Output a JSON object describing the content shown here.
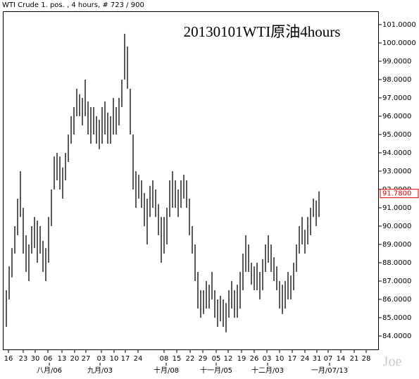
{
  "chart_data": {
    "type": "ohlc",
    "header": "WTI Crude 1. pos. , 4 hours, # 723 / 900",
    "title": "20130101WTI原油4hours",
    "watermark": "Joe",
    "color": "#000000",
    "x": [
      1,
      2,
      3,
      4,
      5,
      6,
      7,
      8,
      9,
      10,
      11,
      12,
      13,
      14,
      15,
      16,
      17,
      18,
      19,
      20,
      21,
      22,
      23,
      24,
      25,
      26,
      27,
      28,
      29,
      30,
      31,
      32,
      33,
      34,
      35,
      36,
      37,
      38,
      39,
      40,
      41,
      42,
      43,
      44,
      45,
      46,
      47,
      48,
      49,
      50,
      51,
      52,
      53,
      54,
      55,
      56,
      57,
      58,
      59,
      60,
      61,
      62,
      63,
      64,
      65,
      66,
      67,
      68,
      69,
      70,
      71,
      72,
      73,
      74,
      75,
      76,
      77,
      78,
      79,
      80,
      81,
      82,
      83,
      84,
      85,
      86,
      87,
      88,
      89,
      90,
      91,
      92,
      93,
      94,
      95,
      96,
      97,
      98,
      99,
      100,
      101,
      102,
      103,
      104,
      105,
      106,
      107,
      108,
      109,
      110,
      111,
      112
    ],
    "low": [
      84.5,
      86.0,
      87.2,
      88.5,
      89.5,
      90.5,
      88.5,
      87.5,
      87.0,
      88.5,
      88.8,
      88.0,
      88.5,
      87.5,
      87.0,
      88.0,
      90.0,
      92.0,
      92.5,
      92.0,
      91.5,
      92.5,
      93.5,
      94.5,
      95.0,
      96.0,
      96.0,
      95.5,
      96.0,
      95.0,
      94.5,
      95.0,
      94.5,
      94.2,
      94.5,
      95.0,
      94.5,
      94.5,
      95.0,
      95.0,
      95.5,
      96.5,
      98.0,
      97.5,
      95.0,
      92.0,
      91.0,
      91.5,
      91.0,
      90.0,
      89.0,
      90.5,
      91.0,
      90.5,
      89.5,
      88.0,
      88.5,
      89.0,
      90.5,
      91.0,
      91.0,
      90.5,
      91.0,
      91.5,
      91.0,
      89.5,
      88.5,
      87.0,
      85.5,
      85.0,
      85.2,
      85.5,
      85.5,
      86.0,
      85.0,
      84.5,
      84.8,
      84.5,
      84.2,
      85.0,
      85.5,
      85.0,
      85.0,
      85.5,
      86.5,
      87.5,
      87.5,
      86.8,
      86.5,
      86.5,
      86.0,
      86.5,
      87.5,
      88.0,
      87.5,
      87.0,
      86.5,
      85.5,
      85.2,
      85.5,
      86.0,
      86.0,
      86.5,
      87.5,
      88.5,
      89.0,
      88.5,
      89.0,
      89.5,
      90.5,
      90.0,
      90.5
    ],
    "high": [
      86.5,
      87.8,
      88.8,
      90.0,
      91.5,
      93.0,
      91.0,
      89.5,
      89.0,
      90.0,
      90.5,
      90.3,
      90.0,
      89.2,
      88.8,
      90.5,
      92.0,
      93.8,
      94.0,
      93.8,
      93.2,
      94.0,
      95.0,
      96.0,
      96.5,
      97.5,
      97.2,
      97.0,
      98.0,
      96.8,
      96.5,
      96.5,
      96.0,
      95.8,
      96.5,
      96.8,
      96.2,
      96.0,
      97.0,
      96.5,
      97.0,
      98.0,
      100.5,
      99.8,
      97.5,
      95.0,
      93.0,
      92.8,
      92.5,
      91.8,
      91.5,
      92.2,
      92.5,
      92.0,
      91.2,
      90.5,
      90.5,
      91.0,
      92.5,
      93.0,
      92.5,
      92.0,
      92.5,
      92.8,
      92.5,
      91.5,
      90.0,
      89.0,
      87.5,
      86.5,
      86.5,
      87.0,
      86.8,
      87.5,
      86.5,
      86.0,
      86.2,
      86.0,
      85.8,
      86.5,
      87.0,
      86.5,
      86.8,
      87.5,
      88.5,
      89.5,
      89.0,
      88.0,
      87.8,
      88.0,
      87.5,
      88.2,
      89.0,
      89.5,
      89.0,
      88.3,
      87.8,
      87.0,
      86.8,
      87.0,
      87.5,
      87.3,
      88.0,
      89.0,
      90.0,
      90.5,
      89.8,
      90.5,
      91.0,
      91.5,
      91.4,
      91.9
    ],
    "last_price": {
      "value": 91.78,
      "label": "91.7800"
    },
    "xlim": [
      0,
      133.25
    ],
    "ylim": [
      83.23,
      101.69
    ],
    "yticks": [
      {
        "value": 84,
        "label": "84.0000"
      },
      {
        "value": 85,
        "label": "85.0000"
      },
      {
        "value": 86,
        "label": "86.0000"
      },
      {
        "value": 87,
        "label": "87.0000"
      },
      {
        "value": 88,
        "label": "88.0000"
      },
      {
        "value": 89,
        "label": "89.0000"
      },
      {
        "value": 90,
        "label": "90.0000"
      },
      {
        "value": 91,
        "label": "91.0000"
      },
      {
        "value": 92,
        "label": "92.0000"
      },
      {
        "value": 93,
        "label": "93.0000"
      },
      {
        "value": 94,
        "label": "94.0000"
      },
      {
        "value": 95,
        "label": "95.0000"
      },
      {
        "value": 96,
        "label": "96.0000"
      },
      {
        "value": 97,
        "label": "97.0000"
      },
      {
        "value": 98,
        "label": "98.0000"
      },
      {
        "value": 99,
        "label": "99.0000"
      },
      {
        "value": 100,
        "label": "100.0000"
      },
      {
        "value": 101,
        "label": "101.0000"
      }
    ],
    "xticks": [
      {
        "value": 1.75,
        "label": "16"
      },
      {
        "value": 7,
        "label": "23"
      },
      {
        "value": 11.25,
        "label": "30"
      },
      {
        "value": 15.75,
        "label": "06"
      },
      {
        "value": 20.75,
        "label": "13"
      },
      {
        "value": 25.25,
        "label": "20"
      },
      {
        "value": 29.25,
        "label": "27"
      },
      {
        "value": 34.75,
        "label": "03"
      },
      {
        "value": 39.25,
        "label": "10"
      },
      {
        "value": 43.25,
        "label": "17"
      },
      {
        "value": 47.75,
        "label": "24"
      },
      {
        "value": 57,
        "label": "08"
      },
      {
        "value": 61.5,
        "label": "15"
      },
      {
        "value": 66.25,
        "label": "22"
      },
      {
        "value": 70.75,
        "label": "29"
      },
      {
        "value": 75.5,
        "label": "05"
      },
      {
        "value": 79.75,
        "label": "12"
      },
      {
        "value": 84.5,
        "label": "19"
      },
      {
        "value": 89,
        "label": "26"
      },
      {
        "value": 93.5,
        "label": "03"
      },
      {
        "value": 98,
        "label": "10"
      },
      {
        "value": 102.5,
        "label": "17"
      },
      {
        "value": 107,
        "label": "24"
      },
      {
        "value": 111.25,
        "label": "31"
      },
      {
        "value": 115.25,
        "label": "07"
      },
      {
        "value": 119.75,
        "label": "14"
      },
      {
        "value": 124.5,
        "label": "21"
      },
      {
        "value": 128.75,
        "label": "28"
      }
    ],
    "month_labels": [
      {
        "value": 16.25,
        "label": "八月/06"
      },
      {
        "value": 34.25,
        "label": "九月/03"
      },
      {
        "value": 57.75,
        "label": "十月/08"
      },
      {
        "value": 75.5,
        "label": "十一月/05"
      },
      {
        "value": 93.75,
        "label": "十二月/03"
      },
      {
        "value": 115.75,
        "label": "一月/07/13"
      }
    ]
  }
}
